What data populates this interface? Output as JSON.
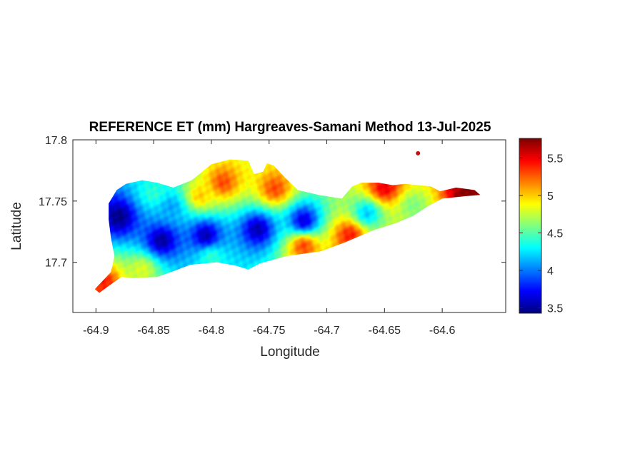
{
  "chart_data": {
    "type": "heatmap",
    "title": "REFERENCE ET (mm) Hargreaves-Samani Method  13-Jul-2025",
    "xlabel": "Longitude",
    "ylabel": "Latitude",
    "xlim": [
      -64.92,
      -64.545
    ],
    "ylim": [
      17.659,
      17.8
    ],
    "x_ticks": [
      -64.9,
      -64.85,
      -64.8,
      -64.75,
      -64.7,
      -64.65,
      -64.6
    ],
    "x_tick_labels": [
      "-64.9",
      "-64.85",
      "-64.8",
      "-64.75",
      "-64.7",
      "-64.65",
      "-64.6"
    ],
    "y_ticks": [
      17.7,
      17.75,
      17.8
    ],
    "y_tick_labels": [
      "17.7",
      "17.75",
      "17.8"
    ],
    "colormap": "jet",
    "color_range": [
      3.43,
      5.76
    ],
    "colorbar_ticks": [
      3.5,
      4,
      4.5,
      5,
      5.5
    ],
    "colorbar_tick_labels": [
      "3.5",
      "4",
      "4.5",
      "5",
      "5.5"
    ],
    "grid": false,
    "region_outline": [
      [
        -64.901,
        17.678
      ],
      [
        -64.887,
        17.692
      ],
      [
        -64.884,
        17.705
      ],
      [
        -64.887,
        17.72
      ],
      [
        -64.889,
        17.735
      ],
      [
        -64.889,
        17.748
      ],
      [
        -64.882,
        17.759
      ],
      [
        -64.874,
        17.764
      ],
      [
        -64.86,
        17.767
      ],
      [
        -64.847,
        17.765
      ],
      [
        -64.833,
        17.761
      ],
      [
        -64.817,
        17.767
      ],
      [
        -64.8,
        17.78
      ],
      [
        -64.784,
        17.784
      ],
      [
        -64.768,
        17.783
      ],
      [
        -64.763,
        17.772
      ],
      [
        -64.755,
        17.774
      ],
      [
        -64.752,
        17.781
      ],
      [
        -64.746,
        17.779
      ],
      [
        -64.736,
        17.769
      ],
      [
        -64.725,
        17.759
      ],
      [
        -64.707,
        17.755
      ],
      [
        -64.687,
        17.752
      ],
      [
        -64.678,
        17.762
      ],
      [
        -64.67,
        17.765
      ],
      [
        -64.655,
        17.765
      ],
      [
        -64.643,
        17.763
      ],
      [
        -64.632,
        17.764
      ],
      [
        -64.61,
        17.762
      ],
      [
        -64.602,
        17.758
      ],
      [
        -64.588,
        17.761
      ],
      [
        -64.572,
        17.759
      ],
      [
        -64.567,
        17.755
      ],
      [
        -64.58,
        17.754
      ],
      [
        -64.6,
        17.752
      ],
      [
        -64.612,
        17.746
      ],
      [
        -64.625,
        17.738
      ],
      [
        -64.64,
        17.732
      ],
      [
        -64.66,
        17.726
      ],
      [
        -64.685,
        17.716
      ],
      [
        -64.705,
        17.709
      ],
      [
        -64.735,
        17.705
      ],
      [
        -64.758,
        17.699
      ],
      [
        -64.768,
        17.694
      ],
      [
        -64.778,
        17.697
      ],
      [
        -64.795,
        17.7
      ],
      [
        -64.818,
        17.698
      ],
      [
        -64.832,
        17.693
      ],
      [
        -64.847,
        17.688
      ],
      [
        -64.868,
        17.687
      ],
      [
        -64.878,
        17.688
      ],
      [
        -64.89,
        17.68
      ],
      [
        -64.897,
        17.675
      ]
    ],
    "islet": [
      -64.621,
      17.789
    ],
    "features": [
      {
        "name": "west-end-low",
        "lon": -64.88,
        "lat": 17.737,
        "value": 3.45
      },
      {
        "name": "central-valley-west",
        "lon": -64.843,
        "lat": 17.718,
        "value": 3.5
      },
      {
        "name": "central-valley-mid",
        "lon": -64.805,
        "lat": 17.722,
        "value": 3.55
      },
      {
        "name": "valley-east",
        "lon": -64.76,
        "lat": 17.727,
        "value": 3.55
      },
      {
        "name": "valley-far-east",
        "lon": -64.72,
        "lat": 17.734,
        "value": 3.65
      },
      {
        "name": "east-ridge-cool",
        "lon": -64.665,
        "lat": 17.74,
        "value": 4.2
      },
      {
        "name": "east-point-green",
        "lon": -64.625,
        "lat": 17.746,
        "value": 4.6
      },
      {
        "name": "north-west-band",
        "lon": -64.85,
        "lat": 17.756,
        "value": 4.4
      },
      {
        "name": "north-west-cyan",
        "lon": -64.835,
        "lat": 17.745,
        "value": 4.1
      },
      {
        "name": "north-central-hot",
        "lon": -64.79,
        "lat": 17.765,
        "value": 5.3
      },
      {
        "name": "north-central-orange",
        "lon": -64.81,
        "lat": 17.754,
        "value": 5.0
      },
      {
        "name": "north-east-red",
        "lon": -64.745,
        "lat": 17.76,
        "value": 5.3
      },
      {
        "name": "east-end-hot",
        "lon": -64.578,
        "lat": 17.756,
        "value": 5.75
      },
      {
        "name": "east-end-north",
        "lon": -64.65,
        "lat": 17.761,
        "value": 5.5
      },
      {
        "name": "south-coast-west",
        "lon": -64.86,
        "lat": 17.694,
        "value": 4.8
      },
      {
        "name": "south-coast-mid",
        "lon": -64.8,
        "lat": 17.704,
        "value": 4.4
      },
      {
        "name": "south-coast-east",
        "lon": -64.72,
        "lat": 17.713,
        "value": 5.3
      },
      {
        "name": "south-shore-east",
        "lon": -64.68,
        "lat": 17.722,
        "value": 5.4
      },
      {
        "name": "south-west-tip",
        "lon": -64.893,
        "lat": 17.683,
        "value": 5.4
      }
    ],
    "idw_power": 2.2,
    "default_value": 4.7
  }
}
